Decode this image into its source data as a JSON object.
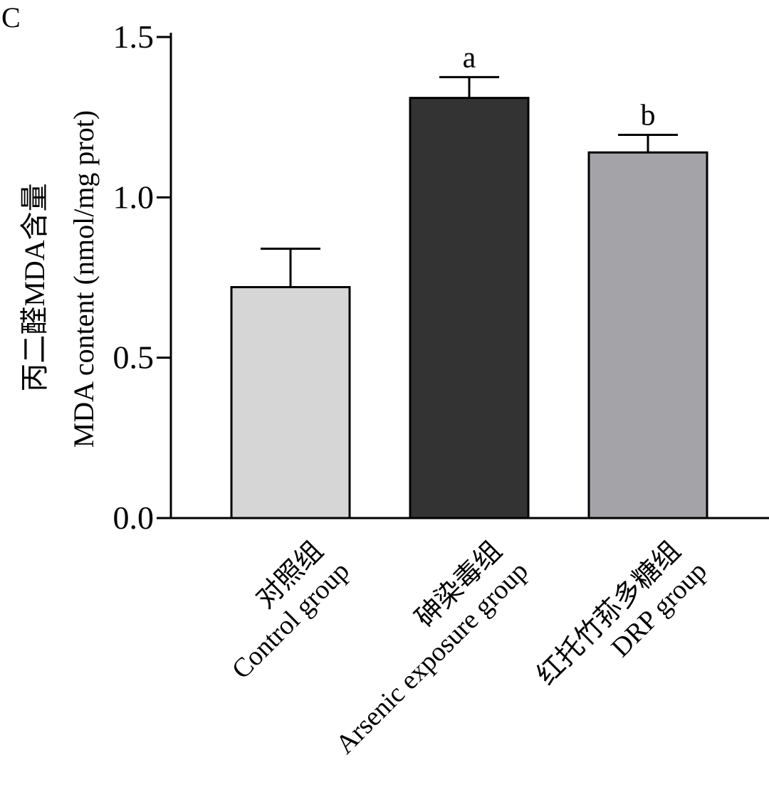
{
  "panel_label": "C",
  "chart_data": {
    "type": "bar",
    "categories": [
      {
        "zh": "对照组",
        "en": "Control group"
      },
      {
        "zh": "砷染毒组",
        "en": "Arsenic exposure group"
      },
      {
        "zh": "红托竹荪多糖组",
        "en": "DRP group"
      }
    ],
    "values": [
      0.72,
      1.31,
      1.14
    ],
    "errors": [
      0.12,
      0.065,
      0.055
    ],
    "significance": [
      "",
      "a",
      "b"
    ],
    "colors": [
      "#d6d6d6",
      "#333333",
      "#a4a3a8"
    ],
    "ylabel_zh": "丙二醛MDA含量",
    "ylabel_en": "MDA content (nmol/mg prot)",
    "ylim": [
      0,
      1.5
    ],
    "yticks": [
      0,
      0.5,
      1,
      1.5
    ],
    "ytick_labels": [
      "0.0",
      "0.5",
      "1.0",
      "1.5"
    ],
    "grid": false
  }
}
